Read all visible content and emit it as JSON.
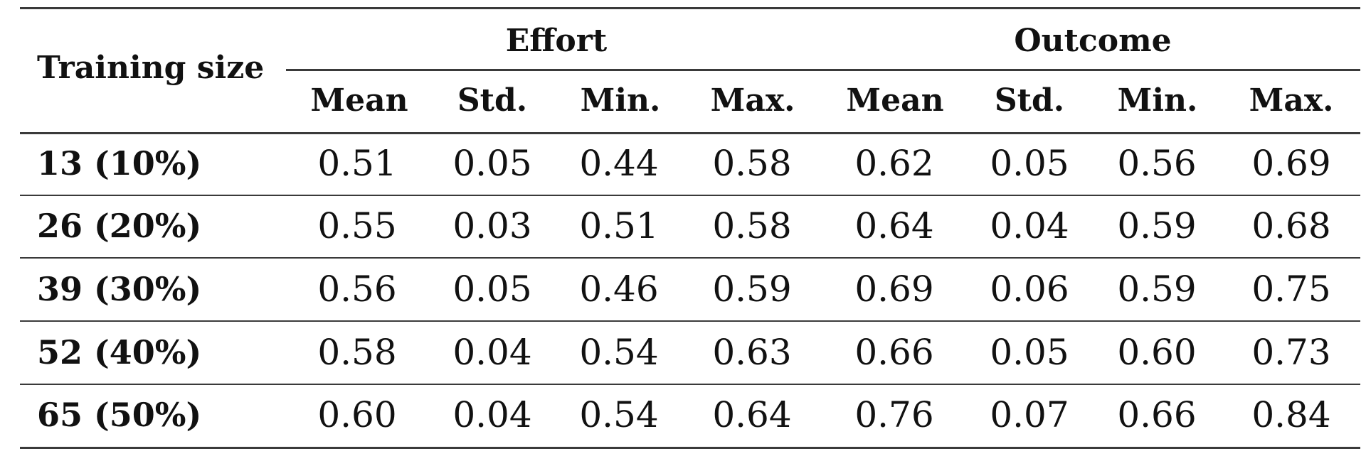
{
  "table": {
    "row_header": "Training size",
    "groups": [
      {
        "label": "Effort",
        "columns": [
          "Mean",
          "Std.",
          "Min.",
          "Max."
        ]
      },
      {
        "label": "Outcome",
        "columns": [
          "Mean",
          "Std.",
          "Min.",
          "Max."
        ]
      }
    ],
    "rows": [
      {
        "label": "13 (10%)",
        "effort": [
          "0.51",
          "0.05",
          "0.44",
          "0.58"
        ],
        "outcome": [
          "0.62",
          "0.05",
          "0.56",
          "0.69"
        ]
      },
      {
        "label": "26 (20%)",
        "effort": [
          "0.55",
          "0.03",
          "0.51",
          "0.58"
        ],
        "outcome": [
          "0.64",
          "0.04",
          "0.59",
          "0.68"
        ]
      },
      {
        "label": "39 (30%)",
        "effort": [
          "0.56",
          "0.05",
          "0.46",
          "0.59"
        ],
        "outcome": [
          "0.69",
          "0.06",
          "0.59",
          "0.75"
        ]
      },
      {
        "label": "52 (40%)",
        "effort": [
          "0.58",
          "0.04",
          "0.54",
          "0.63"
        ],
        "outcome": [
          "0.66",
          "0.05",
          "0.60",
          "0.73"
        ]
      },
      {
        "label": "65 (50%)",
        "effort": [
          "0.60",
          "0.04",
          "0.54",
          "0.64"
        ],
        "outcome": [
          "0.76",
          "0.07",
          "0.66",
          "0.84"
        ]
      }
    ]
  }
}
